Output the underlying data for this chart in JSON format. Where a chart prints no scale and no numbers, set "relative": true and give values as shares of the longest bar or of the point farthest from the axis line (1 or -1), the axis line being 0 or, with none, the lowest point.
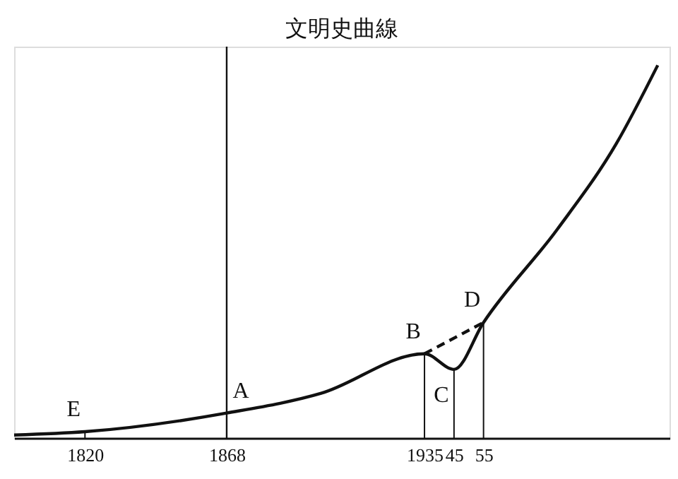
{
  "chart_data": {
    "type": "line",
    "title": "文明史曲線",
    "relative": true,
    "xlim": [
      1796,
      2018
    ],
    "xticks": [
      1820,
      1868,
      1935,
      {
        "value": 1945,
        "label": "45"
      },
      {
        "value": 1955,
        "label": "55"
      }
    ],
    "series": [
      {
        "color": "#111111",
        "line_style": "solid",
        "x": [
          1796,
          1820,
          1868,
          1900,
          1935,
          1945,
          1955,
          1980,
          2000,
          2014
        ],
        "values": [
          0.008,
          0.017,
          0.067,
          0.12,
          0.226,
          0.184,
          0.31,
          0.56,
          0.79,
          1.0
        ]
      },
      {
        "color": "#111111",
        "line_style": "dashed",
        "x": [
          1935,
          1955
        ],
        "values": [
          0.226,
          0.31
        ]
      }
    ],
    "ref_lines": [
      {
        "axis": "x",
        "value": 1868,
        "color": "#111111"
      }
    ],
    "annotations": [
      {
        "text": "E",
        "x": 1820,
        "y": 0.017
      },
      {
        "text": "A",
        "x": 1868,
        "y": 0.067
      },
      {
        "text": "B",
        "x": 1935,
        "y": 0.226
      },
      {
        "text": "C",
        "x": 1945,
        "y": 0.184
      },
      {
        "text": "D",
        "x": 1955,
        "y": 0.31
      }
    ],
    "grid": false,
    "marker": "none"
  }
}
